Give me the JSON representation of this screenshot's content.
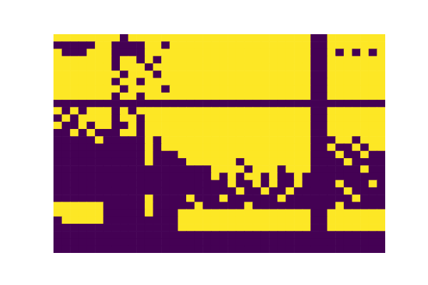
{
  "chart_data": {
    "type": "heatmap",
    "tick_labels": false,
    "colors": [
      "#440154",
      "#fde725"
    ],
    "cells": [
      [
        1,
        1,
        1,
        1,
        1,
        1,
        1,
        1,
        0,
        1,
        1,
        1,
        1,
        1,
        1,
        1,
        1,
        1,
        1,
        1,
        1,
        1,
        1,
        1,
        1,
        1,
        1,
        1,
        1,
        1,
        1,
        0,
        0,
        1,
        1,
        1,
        1,
        1,
        1,
        1
      ],
      [
        0,
        0,
        0,
        0,
        0,
        1,
        1,
        0,
        0,
        0,
        0,
        1,
        1,
        0,
        1,
        1,
        1,
        1,
        1,
        1,
        1,
        1,
        1,
        1,
        1,
        1,
        1,
        1,
        1,
        1,
        1,
        0,
        0,
        1,
        1,
        1,
        1,
        1,
        1,
        1
      ],
      [
        1,
        0,
        0,
        0,
        1,
        1,
        1,
        0,
        0,
        0,
        0,
        1,
        1,
        1,
        1,
        1,
        1,
        1,
        1,
        1,
        1,
        1,
        1,
        1,
        1,
        1,
        1,
        1,
        1,
        1,
        1,
        0,
        0,
        1,
        0,
        1,
        0,
        1,
        0,
        1
      ],
      [
        1,
        1,
        1,
        1,
        1,
        1,
        1,
        0,
        1,
        1,
        0,
        1,
        0,
        1,
        1,
        1,
        1,
        1,
        1,
        1,
        1,
        1,
        1,
        1,
        1,
        1,
        1,
        1,
        1,
        1,
        1,
        0,
        0,
        1,
        1,
        1,
        1,
        1,
        1,
        1
      ],
      [
        1,
        1,
        1,
        1,
        1,
        1,
        1,
        0,
        1,
        1,
        1,
        0,
        1,
        1,
        1,
        1,
        1,
        1,
        1,
        1,
        1,
        1,
        1,
        1,
        1,
        1,
        1,
        1,
        1,
        1,
        1,
        0,
        0,
        1,
        1,
        1,
        1,
        1,
        1,
        1
      ],
      [
        1,
        1,
        1,
        1,
        1,
        1,
        1,
        1,
        0,
        1,
        1,
        1,
        0,
        1,
        1,
        1,
        1,
        1,
        1,
        1,
        1,
        1,
        1,
        1,
        1,
        1,
        1,
        1,
        1,
        1,
        1,
        0,
        0,
        1,
        1,
        1,
        1,
        1,
        1,
        1
      ],
      [
        1,
        1,
        1,
        1,
        1,
        1,
        1,
        0,
        1,
        1,
        0,
        1,
        1,
        1,
        1,
        1,
        1,
        1,
        1,
        1,
        1,
        1,
        1,
        1,
        1,
        1,
        1,
        1,
        1,
        1,
        1,
        0,
        0,
        1,
        1,
        1,
        1,
        1,
        1,
        1
      ],
      [
        1,
        1,
        1,
        1,
        1,
        1,
        1,
        1,
        0,
        1,
        1,
        1,
        1,
        0,
        1,
        1,
        1,
        1,
        1,
        1,
        1,
        1,
        1,
        1,
        1,
        1,
        1,
        1,
        1,
        1,
        1,
        0,
        0,
        1,
        1,
        1,
        1,
        1,
        1,
        1
      ],
      [
        1,
        1,
        1,
        1,
        1,
        1,
        1,
        0,
        1,
        1,
        0,
        1,
        1,
        1,
        1,
        1,
        1,
        1,
        1,
        1,
        1,
        1,
        1,
        1,
        1,
        1,
        1,
        1,
        1,
        1,
        1,
        0,
        0,
        1,
        1,
        1,
        1,
        1,
        1,
        1
      ],
      [
        0,
        0,
        0,
        0,
        0,
        0,
        0,
        0,
        0,
        0,
        0,
        0,
        0,
        0,
        0,
        0,
        0,
        0,
        0,
        0,
        0,
        0,
        0,
        0,
        0,
        0,
        0,
        0,
        0,
        0,
        0,
        0,
        0,
        0,
        0,
        0,
        0,
        0,
        0,
        0
      ],
      [
        1,
        0,
        1,
        0,
        1,
        1,
        1,
        0,
        1,
        0,
        1,
        1,
        1,
        1,
        1,
        1,
        1,
        1,
        1,
        1,
        1,
        1,
        1,
        1,
        1,
        1,
        1,
        1,
        1,
        1,
        1,
        0,
        0,
        1,
        1,
        1,
        1,
        1,
        1,
        1
      ],
      [
        0,
        1,
        0,
        1,
        1,
        1,
        1,
        0,
        1,
        1,
        0,
        1,
        1,
        1,
        1,
        1,
        1,
        1,
        1,
        1,
        1,
        1,
        1,
        1,
        1,
        1,
        1,
        1,
        1,
        1,
        1,
        0,
        0,
        1,
        1,
        1,
        1,
        1,
        1,
        1
      ],
      [
        1,
        0,
        0,
        1,
        0,
        1,
        1,
        0,
        0,
        1,
        0,
        1,
        1,
        1,
        1,
        1,
        1,
        1,
        1,
        1,
        1,
        1,
        1,
        1,
        1,
        1,
        1,
        1,
        1,
        1,
        1,
        0,
        0,
        1,
        1,
        1,
        1,
        1,
        1,
        1
      ],
      [
        0,
        0,
        1,
        0,
        1,
        0,
        0,
        0,
        1,
        1,
        0,
        1,
        1,
        1,
        1,
        1,
        1,
        1,
        1,
        1,
        1,
        1,
        1,
        1,
        1,
        1,
        1,
        1,
        1,
        1,
        1,
        0,
        0,
        1,
        1,
        1,
        1,
        1,
        1,
        1
      ],
      [
        0,
        0,
        0,
        0,
        0,
        1,
        0,
        0,
        0,
        0,
        0,
        1,
        0,
        1,
        1,
        1,
        1,
        1,
        1,
        1,
        1,
        1,
        1,
        1,
        1,
        1,
        1,
        1,
        1,
        1,
        1,
        0,
        0,
        0,
        1,
        1,
        0,
        1,
        1,
        1
      ],
      [
        0,
        0,
        0,
        0,
        0,
        0,
        0,
        0,
        0,
        0,
        0,
        1,
        0,
        1,
        1,
        1,
        1,
        1,
        1,
        1,
        1,
        1,
        1,
        1,
        1,
        1,
        1,
        1,
        1,
        1,
        1,
        0,
        0,
        1,
        0,
        0,
        1,
        0,
        1,
        1
      ],
      [
        0,
        0,
        0,
        0,
        0,
        0,
        0,
        0,
        0,
        0,
        0,
        1,
        0,
        0,
        0,
        1,
        1,
        1,
        1,
        1,
        1,
        1,
        1,
        1,
        1,
        1,
        1,
        1,
        1,
        1,
        1,
        0,
        0,
        0,
        1,
        0,
        0,
        1,
        0,
        0
      ],
      [
        0,
        0,
        0,
        0,
        0,
        0,
        0,
        0,
        0,
        0,
        0,
        1,
        0,
        0,
        0,
        0,
        1,
        1,
        1,
        1,
        1,
        1,
        0,
        1,
        1,
        1,
        1,
        1,
        1,
        1,
        1,
        0,
        0,
        0,
        0,
        1,
        0,
        0,
        0,
        0
      ],
      [
        0,
        0,
        0,
        0,
        0,
        0,
        0,
        0,
        0,
        0,
        0,
        0,
        0,
        0,
        0,
        0,
        0,
        0,
        0,
        1,
        1,
        1,
        1,
        0,
        1,
        1,
        1,
        0,
        1,
        1,
        1,
        0,
        0,
        0,
        0,
        0,
        0,
        1,
        0,
        0
      ],
      [
        0,
        0,
        0,
        0,
        0,
        0,
        0,
        0,
        0,
        0,
        0,
        0,
        0,
        0,
        0,
        0,
        0,
        0,
        0,
        1,
        0,
        1,
        0,
        1,
        1,
        0,
        1,
        0,
        0,
        1,
        0,
        0,
        0,
        0,
        0,
        0,
        0,
        0,
        0,
        0
      ],
      [
        0,
        0,
        0,
        0,
        0,
        0,
        0,
        0,
        0,
        0,
        0,
        0,
        0,
        0,
        0,
        0,
        0,
        0,
        0,
        0,
        0,
        1,
        0,
        0,
        1,
        0,
        1,
        0,
        0,
        1,
        0,
        0,
        0,
        0,
        1,
        0,
        0,
        0,
        1,
        0
      ],
      [
        0,
        0,
        0,
        0,
        0,
        0,
        0,
        0,
        0,
        0,
        0,
        0,
        0,
        0,
        0,
        0,
        0,
        0,
        0,
        0,
        0,
        0,
        1,
        0,
        0,
        1,
        0,
        0,
        1,
        0,
        0,
        0,
        0,
        0,
        0,
        1,
        0,
        0,
        0,
        0
      ],
      [
        0,
        0,
        0,
        0,
        0,
        0,
        0,
        0,
        0,
        0,
        0,
        1,
        0,
        0,
        0,
        0,
        1,
        0,
        0,
        0,
        1,
        0,
        0,
        0,
        0,
        0,
        0,
        1,
        0,
        0,
        0,
        0,
        0,
        0,
        0,
        0,
        1,
        0,
        0,
        0
      ],
      [
        1,
        1,
        1,
        1,
        1,
        1,
        0,
        0,
        0,
        0,
        0,
        1,
        0,
        0,
        0,
        0,
        0,
        1,
        0,
        0,
        0,
        0,
        0,
        1,
        0,
        0,
        0,
        0,
        0,
        0,
        0,
        0,
        0,
        0,
        1,
        0,
        0,
        0,
        0,
        0
      ],
      [
        1,
        1,
        1,
        1,
        1,
        1,
        0,
        0,
        0,
        0,
        0,
        1,
        0,
        0,
        0,
        1,
        1,
        1,
        1,
        1,
        1,
        1,
        1,
        1,
        1,
        1,
        1,
        1,
        1,
        1,
        1,
        0,
        0,
        1,
        1,
        1,
        1,
        1,
        1,
        1
      ],
      [
        0,
        1,
        1,
        1,
        1,
        1,
        0,
        0,
        0,
        0,
        0,
        0,
        0,
        0,
        0,
        1,
        1,
        1,
        1,
        1,
        1,
        1,
        1,
        1,
        1,
        1,
        1,
        1,
        1,
        1,
        1,
        0,
        0,
        1,
        1,
        1,
        1,
        1,
        1,
        1
      ],
      [
        0,
        0,
        0,
        0,
        0,
        0,
        0,
        0,
        0,
        0,
        0,
        0,
        0,
        0,
        0,
        1,
        1,
        1,
        1,
        1,
        1,
        1,
        1,
        1,
        1,
        1,
        1,
        1,
        1,
        1,
        1,
        0,
        0,
        1,
        1,
        1,
        1,
        1,
        1,
        1
      ],
      [
        0,
        0,
        0,
        0,
        0,
        0,
        0,
        0,
        0,
        0,
        0,
        0,
        0,
        0,
        0,
        0,
        0,
        0,
        0,
        0,
        0,
        0,
        0,
        0,
        0,
        0,
        0,
        0,
        0,
        0,
        0,
        0,
        0,
        0,
        0,
        0,
        0,
        0,
        0,
        0
      ],
      [
        0,
        0,
        0,
        0,
        0,
        0,
        0,
        0,
        0,
        0,
        0,
        0,
        0,
        0,
        0,
        0,
        0,
        0,
        0,
        0,
        0,
        0,
        0,
        0,
        0,
        0,
        0,
        0,
        0,
        0,
        0,
        0,
        0,
        0,
        0,
        0,
        0,
        0,
        0,
        0
      ],
      [
        0,
        0,
        0,
        0,
        0,
        0,
        0,
        0,
        0,
        0,
        0,
        0,
        0,
        0,
        0,
        0,
        0,
        0,
        0,
        0,
        0,
        0,
        0,
        0,
        0,
        0,
        0,
        0,
        0,
        0,
        0,
        0,
        0,
        0,
        0,
        0,
        0,
        0,
        0,
        0
      ]
    ]
  }
}
